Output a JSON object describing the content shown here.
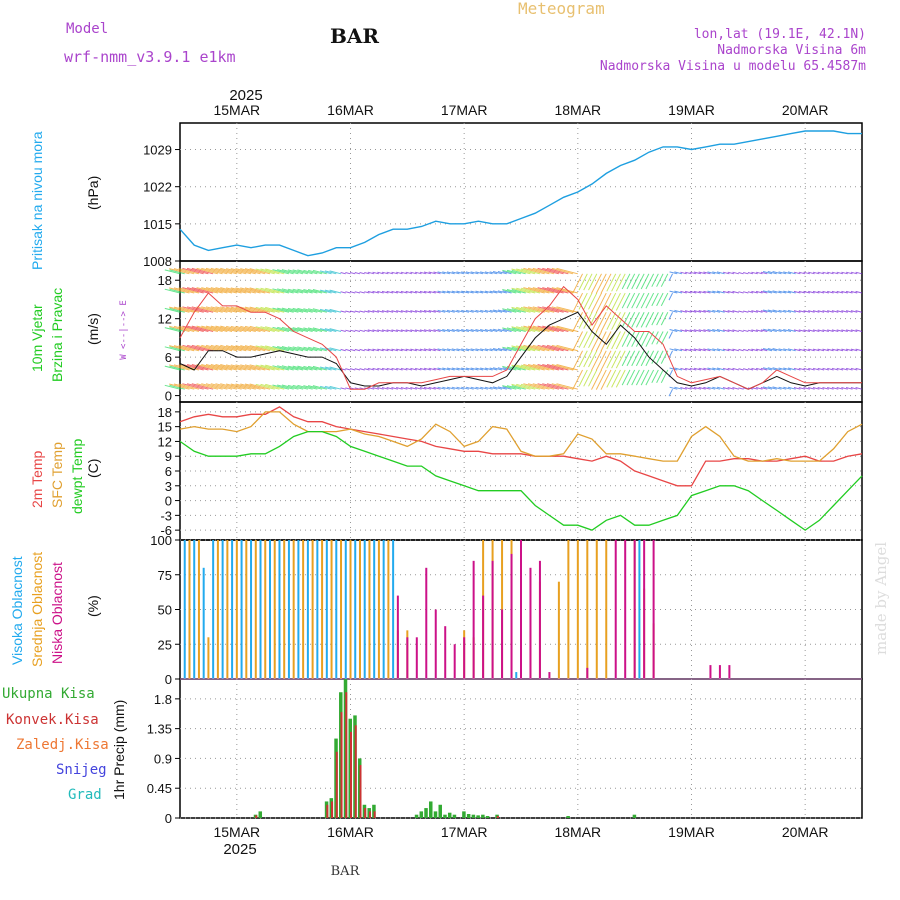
{
  "header": {
    "title": "BAR",
    "subtitle": "Meteogram",
    "model_label": "Model",
    "model_name": "wrf-nmm_v3.9.1 e1km",
    "location": "lon,lat (19.1E, 42.1N)",
    "elevation": "Nadmorska Visina 6m",
    "model_elevation": "Nadmorska Visina u modelu 65.4587m",
    "footer_station": "BAR",
    "credit": "made by Angel"
  },
  "colors": {
    "pressure": "#1e9fe0",
    "temp_2m": "#e84646",
    "temp_sfc": "#e0a030",
    "dewpoint": "#22cc22",
    "cloud_high": "#22aaee",
    "cloud_mid": "#e8a020",
    "cloud_low": "#cc1188",
    "precip_total": "#33aa33",
    "precip_conv": "#cc3333",
    "precip_frozen": "#ee7733",
    "precip_snow": "#4444dd",
    "precip_hail": "#22bbbb",
    "header_purple": "#aa44cc",
    "header_orange": "#e8c070"
  },
  "chart_data": [
    {
      "type": "line",
      "panel": "pressure",
      "ylabel_left": "Pritisak na nivou mora",
      "ylabel_unit": "(hPa)",
      "year": "2025",
      "x_ticks": [
        "15MAR",
        "16MAR",
        "17MAR",
        "18MAR",
        "19MAR",
        "20MAR"
      ],
      "x_start_date": "2025-03-14 12:00",
      "x_end_date": "2025-03-20 12:00",
      "ylim": [
        1008,
        1034
      ],
      "yticks": [
        1008,
        1015,
        1022,
        1029
      ],
      "grid": true,
      "series": [
        {
          "x_hours": [
            0,
            3,
            6,
            9,
            12,
            15,
            18,
            21,
            24,
            27,
            30,
            33,
            36,
            39,
            42,
            45,
            48,
            51,
            54,
            57,
            60,
            63,
            66,
            69,
            72,
            75,
            78,
            81,
            84,
            87,
            90,
            93,
            96,
            99,
            102,
            105,
            108,
            111,
            114,
            117,
            120,
            123,
            126,
            129,
            132,
            135,
            138,
            141,
            144
          ],
          "values": [
            1014,
            1011,
            1010,
            1010.5,
            1011,
            1010.5,
            1011,
            1011,
            1010,
            1009,
            1009.5,
            1010.5,
            1010.5,
            1011.5,
            1013,
            1014,
            1014,
            1014.5,
            1015.5,
            1015,
            1015,
            1015.5,
            1015,
            1015,
            1016,
            1017,
            1018.5,
            1020,
            1021,
            1022.5,
            1024.5,
            1026,
            1027,
            1028.5,
            1029.5,
            1029.5,
            1029,
            1029.5,
            1030,
            1030,
            1030.5,
            1031,
            1031.5,
            1032,
            1032.5,
            1032.5,
            1032.5,
            1032,
            1032
          ]
        }
      ]
    },
    {
      "type": "line",
      "panel": "wind",
      "ylabel_left_1": "10m Vjetar",
      "ylabel_left_2": "Brzina i Pravac",
      "ylabel_unit": "(m/s)",
      "direction_key": "W <--|--> E",
      "ylim": [
        -1,
        21
      ],
      "yticks": [
        0,
        6,
        12,
        18
      ],
      "series": [
        {
          "name": "10m wind speed",
          "x_hours": [
            0,
            3,
            6,
            9,
            12,
            15,
            18,
            21,
            24,
            27,
            30,
            33,
            36,
            39,
            42,
            45,
            48,
            51,
            54,
            57,
            60,
            63,
            66,
            69,
            72,
            75,
            78,
            81,
            84,
            87,
            90,
            93,
            96,
            99,
            102,
            105,
            108,
            111,
            114,
            117,
            120,
            123,
            126,
            129,
            132,
            135,
            138,
            141,
            144
          ],
          "values": [
            5,
            4,
            7,
            7,
            6,
            6,
            6.5,
            7,
            6.5,
            6,
            6,
            5,
            2,
            1.5,
            1.5,
            2,
            2,
            1.5,
            2,
            2.5,
            3,
            2.5,
            2,
            3,
            6,
            9,
            11,
            12,
            13,
            10,
            8,
            11,
            9,
            6,
            4,
            2,
            1.5,
            2,
            3,
            2,
            1,
            2,
            3,
            2,
            1.5,
            2,
            2,
            2,
            2
          ]
        },
        {
          "name": "10m wind gust",
          "x_hours": [
            0,
            3,
            6,
            9,
            12,
            15,
            18,
            21,
            24,
            27,
            30,
            33,
            36,
            39,
            42,
            45,
            48,
            51,
            54,
            57,
            60,
            63,
            66,
            69,
            72,
            75,
            78,
            81,
            84,
            87,
            90,
            93,
            96,
            99,
            102,
            105,
            108,
            111,
            114,
            117,
            120,
            123,
            126,
            129,
            132,
            135,
            138,
            141,
            144
          ],
          "values": [
            9,
            13,
            16,
            14,
            14,
            13,
            13,
            12,
            10,
            9,
            8,
            6,
            1,
            1,
            2,
            2,
            2,
            2,
            2.5,
            3,
            3,
            3,
            3,
            4,
            8,
            12,
            14,
            17,
            15,
            11,
            14,
            12,
            10,
            10,
            8,
            3,
            2,
            2.5,
            3,
            2,
            1,
            2,
            4,
            3,
            2,
            2,
            2,
            2,
            2
          ]
        }
      ]
    },
    {
      "type": "line",
      "panel": "temperature",
      "ylabel_left_1": "2m Temp",
      "ylabel_left_2": "SFC Temp",
      "ylabel_left_3": "dewpt Temp",
      "ylabel_unit": "(C)",
      "ylim": [
        -8,
        20
      ],
      "yticks": [
        -6,
        -3,
        0,
        3,
        6,
        9,
        12,
        15,
        18
      ],
      "series": [
        {
          "name": "2m Temp",
          "x_hours": [
            0,
            3,
            6,
            9,
            12,
            15,
            18,
            21,
            24,
            27,
            30,
            33,
            36,
            39,
            42,
            45,
            48,
            51,
            54,
            57,
            60,
            63,
            66,
            69,
            72,
            75,
            78,
            81,
            84,
            87,
            90,
            93,
            96,
            99,
            102,
            105,
            108,
            111,
            114,
            117,
            120,
            123,
            126,
            129,
            132,
            135,
            138,
            141,
            144
          ],
          "values": [
            16,
            17,
            17.5,
            17,
            17,
            17.5,
            17.5,
            19,
            17,
            16,
            16,
            15,
            14.5,
            14,
            13.5,
            13,
            12.5,
            12,
            11,
            10.5,
            10,
            10,
            9.5,
            9.5,
            9.5,
            9,
            9,
            9,
            8.5,
            8,
            9,
            8,
            6,
            5,
            4,
            3,
            3,
            8,
            8,
            8.5,
            8.5,
            8,
            8,
            8.5,
            9,
            8,
            8,
            9,
            9.5
          ]
        },
        {
          "name": "SFC Temp",
          "x_hours": [
            0,
            3,
            6,
            9,
            12,
            15,
            18,
            21,
            24,
            27,
            30,
            33,
            36,
            39,
            42,
            45,
            48,
            51,
            54,
            57,
            60,
            63,
            66,
            69,
            72,
            75,
            78,
            81,
            84,
            87,
            90,
            93,
            96,
            99,
            102,
            105,
            108,
            111,
            114,
            117,
            120,
            123,
            126,
            129,
            132,
            135,
            138,
            141,
            144
          ],
          "values": [
            14.5,
            15,
            14.5,
            14.5,
            14,
            15,
            18,
            18,
            15.5,
            14,
            14,
            14,
            14.5,
            13.5,
            13,
            12,
            11,
            12.5,
            15.5,
            14,
            11,
            12,
            15,
            14.5,
            10,
            9,
            9,
            9.5,
            13.5,
            12.5,
            9.5,
            9.5,
            9,
            8.5,
            8,
            8,
            13,
            15,
            13,
            9,
            8,
            8,
            8.5,
            8,
            8,
            8,
            10.5,
            14,
            15.5
          ]
        },
        {
          "name": "dewpt Temp",
          "x_hours": [
            0,
            3,
            6,
            9,
            12,
            15,
            18,
            21,
            24,
            27,
            30,
            33,
            36,
            39,
            42,
            45,
            48,
            51,
            54,
            57,
            60,
            63,
            66,
            69,
            72,
            75,
            78,
            81,
            84,
            87,
            90,
            93,
            96,
            99,
            102,
            105,
            108,
            111,
            114,
            117,
            120,
            123,
            126,
            129,
            132,
            135,
            138,
            141,
            144
          ],
          "values": [
            12,
            10,
            9,
            9,
            9,
            9.5,
            9.5,
            11,
            13,
            14,
            14,
            13,
            11,
            10,
            9,
            8,
            7,
            7,
            5,
            4,
            3,
            2,
            2,
            2,
            2,
            -1,
            -3,
            -5,
            -5,
            -6,
            -4,
            -3,
            -5,
            -5,
            -4,
            -3,
            1,
            2,
            3,
            3,
            2,
            0,
            -2,
            -4,
            -6,
            -4,
            -1,
            2,
            5
          ]
        }
      ]
    },
    {
      "type": "bar",
      "panel": "cloud",
      "ylabel_left_1": "Visoka Oblacnost",
      "ylabel_left_2": "Srednja Oblacnost",
      "ylabel_left_3": "Niska Oblacnost",
      "ylabel_unit": "(%)",
      "ylim": [
        0,
        100
      ],
      "yticks": [
        0,
        25,
        50,
        75,
        100
      ],
      "series": [
        {
          "name": "Visoka Oblacnost",
          "x_hours": [
            1,
            3,
            5,
            7,
            9,
            11,
            13,
            15,
            17,
            19,
            21,
            23,
            25,
            27,
            29,
            31,
            33,
            35,
            37,
            39,
            41,
            43,
            45,
            57,
            59,
            61,
            63,
            65,
            67,
            69,
            71,
            73,
            75,
            77,
            79,
            81,
            83,
            85,
            87,
            89,
            91,
            93,
            95,
            97,
            99,
            101
          ],
          "values": [
            100,
            100,
            80,
            100,
            100,
            100,
            100,
            100,
            100,
            100,
            100,
            100,
            100,
            100,
            100,
            100,
            100,
            100,
            100,
            100,
            100,
            100,
            100,
            0,
            0,
            0,
            0,
            0,
            0,
            0,
            5,
            0,
            0,
            0,
            0,
            0,
            0,
            0,
            0,
            0,
            0,
            0,
            0,
            100,
            0,
            0
          ]
        },
        {
          "name": "Srednja Oblacnost",
          "x_hours": [
            2,
            4,
            6,
            8,
            10,
            12,
            14,
            16,
            18,
            20,
            22,
            24,
            26,
            28,
            30,
            32,
            34,
            36,
            38,
            40,
            42,
            44,
            46,
            48,
            50,
            58,
            60,
            62,
            64,
            66,
            68,
            70,
            72,
            74,
            76,
            78,
            80,
            82,
            84,
            86,
            88,
            90,
            92,
            94,
            96,
            98,
            100,
            102
          ],
          "values": [
            100,
            100,
            30,
            100,
            100,
            100,
            100,
            100,
            100,
            100,
            100,
            100,
            100,
            100,
            100,
            100,
            100,
            100,
            100,
            100,
            100,
            100,
            35,
            35,
            0,
            0,
            35,
            30,
            100,
            100,
            100,
            100,
            55,
            35,
            70,
            0,
            70,
            100,
            100,
            100,
            100,
            100,
            0,
            0,
            100,
            65,
            40,
            0
          ]
        },
        {
          "name": "Niska Oblacnost",
          "x_hours": [
            46,
            48,
            50,
            52,
            54,
            56,
            58,
            60,
            62,
            64,
            66,
            68,
            70,
            72,
            74,
            76,
            78,
            80,
            82,
            84,
            86,
            88,
            90,
            92,
            94,
            96,
            98,
            100,
            102,
            104,
            106,
            108,
            110,
            112,
            114,
            116,
            118,
            120,
            122,
            124,
            126,
            128,
            130,
            132,
            134,
            136,
            138,
            140,
            142,
            144
          ],
          "values": [
            60,
            30,
            30,
            80,
            50,
            38,
            25,
            30,
            85,
            60,
            85,
            50,
            90,
            100,
            80,
            85,
            5,
            0,
            0,
            0,
            8,
            0,
            0,
            100,
            100,
            100,
            100,
            100,
            0,
            0,
            0,
            0,
            0,
            10,
            10,
            10,
            0,
            0,
            0,
            0,
            0,
            0,
            0,
            0,
            0,
            0,
            0,
            0,
            0,
            0
          ]
        }
      ]
    },
    {
      "type": "bar",
      "panel": "precip",
      "ylabel_left": "1hr Precip (mm)",
      "legend": [
        "Ukupna Kisa",
        "Konvek.Kisa",
        "Zaledj.Kisa",
        "Snijeg",
        "Grad"
      ],
      "ylim": [
        0,
        2.1
      ],
      "yticks": [
        0,
        0.45,
        0.9,
        1.35,
        1.8
      ],
      "series": [
        {
          "name": "Ukupna Kisa",
          "x_hours": [
            16,
            17,
            31,
            32,
            33,
            34,
            35,
            36,
            37,
            38,
            39,
            40,
            41,
            50,
            51,
            52,
            53,
            54,
            55,
            56,
            57,
            58,
            60,
            61,
            62,
            63,
            64,
            65,
            67,
            82,
            96
          ],
          "values": [
            0.05,
            0.1,
            0.25,
            0.3,
            1.2,
            1.9,
            2.1,
            1.5,
            1.55,
            0.9,
            0.2,
            0.15,
            0.2,
            0.05,
            0.1,
            0.15,
            0.25,
            0.1,
            0.2,
            0.05,
            0.08,
            0.05,
            0.1,
            0.06,
            0.05,
            0.04,
            0.05,
            0.03,
            0.05,
            0.03,
            0.05
          ]
        },
        {
          "name": "Konvek.Kisa",
          "x_hours": [
            16,
            31,
            32,
            33,
            34,
            35,
            36,
            37,
            38,
            39,
            40,
            41,
            67
          ],
          "values": [
            0.04,
            0.2,
            0.25,
            1.0,
            1.6,
            1.9,
            1.3,
            1.4,
            0.8,
            0.15,
            0.1,
            0.1,
            0.03
          ]
        }
      ]
    }
  ]
}
